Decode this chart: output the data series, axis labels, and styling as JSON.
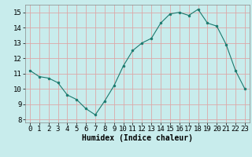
{
  "x": [
    0,
    1,
    2,
    3,
    4,
    5,
    6,
    7,
    8,
    9,
    10,
    11,
    12,
    13,
    14,
    15,
    16,
    17,
    18,
    19,
    20,
    21,
    22,
    23
  ],
  "y": [
    11.2,
    10.8,
    10.7,
    10.4,
    9.6,
    9.3,
    8.7,
    8.3,
    9.2,
    10.2,
    11.5,
    12.5,
    13.0,
    13.3,
    14.3,
    14.9,
    15.0,
    14.8,
    15.2,
    14.3,
    14.1,
    12.9,
    11.2,
    10.0
  ],
  "xlabel": "Humidex (Indice chaleur)",
  "ylim": [
    7.8,
    15.5
  ],
  "xlim": [
    -0.5,
    23.5
  ],
  "yticks": [
    8,
    9,
    10,
    11,
    12,
    13,
    14,
    15
  ],
  "xticks": [
    0,
    1,
    2,
    3,
    4,
    5,
    6,
    7,
    8,
    9,
    10,
    11,
    12,
    13,
    14,
    15,
    16,
    17,
    18,
    19,
    20,
    21,
    22,
    23
  ],
  "line_color": "#1a7a6e",
  "marker_color": "#1a7a6e",
  "bg_color": "#c8ecec",
  "grid_color": "#dca8a8",
  "xlabel_fontsize": 7,
  "tick_fontsize": 6.5
}
